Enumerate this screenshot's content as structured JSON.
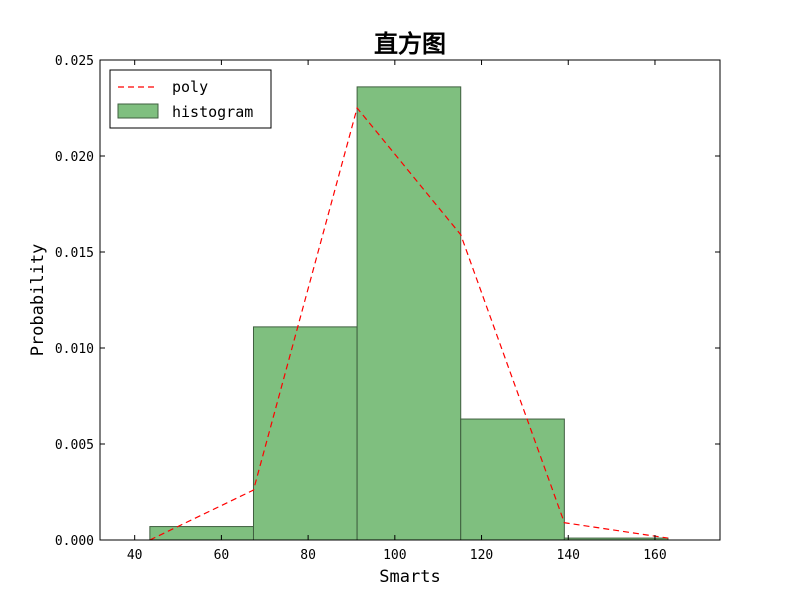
{
  "chart_data": {
    "type": "bar",
    "title": "直方图",
    "xlabel": "Smarts",
    "ylabel": "Probability",
    "xlim": [
      32,
      175
    ],
    "ylim": [
      0,
      0.025
    ],
    "x_ticks": [
      40,
      60,
      80,
      100,
      120,
      140,
      160
    ],
    "x_tick_labels": [
      "40",
      "60",
      "80",
      "100",
      "120",
      "140",
      "160"
    ],
    "y_ticks": [
      0,
      0.005,
      0.01,
      0.015,
      0.02,
      0.025
    ],
    "y_tick_labels": [
      "0.000",
      "0.005",
      "0.010",
      "0.015",
      "0.020",
      "0.025"
    ],
    "bins": [
      {
        "x0": 43.5,
        "x1": 67.4,
        "value": 0.0007
      },
      {
        "x0": 67.4,
        "x1": 91.3,
        "value": 0.0111
      },
      {
        "x0": 91.3,
        "x1": 115.2,
        "value": 0.0236
      },
      {
        "x0": 115.2,
        "x1": 139.1,
        "value": 0.0063
      },
      {
        "x0": 139.1,
        "x1": 163.0,
        "value": 0.0001
      }
    ],
    "series": [
      {
        "name": "poly",
        "type": "line",
        "style": "dashed",
        "color": "#ff0000",
        "x": [
          43.5,
          67.4,
          91.3,
          115.2,
          139.1,
          163.0
        ],
        "y": [
          0.0,
          0.0026,
          0.0225,
          0.0159,
          0.0009,
          0.0001
        ]
      },
      {
        "name": "histogram",
        "type": "bar",
        "color": "#7fbf7f",
        "edge_color": "#3f5f3f"
      }
    ],
    "legend": {
      "position": "top-left",
      "entries": [
        "poly",
        "histogram"
      ]
    },
    "grid": false
  }
}
